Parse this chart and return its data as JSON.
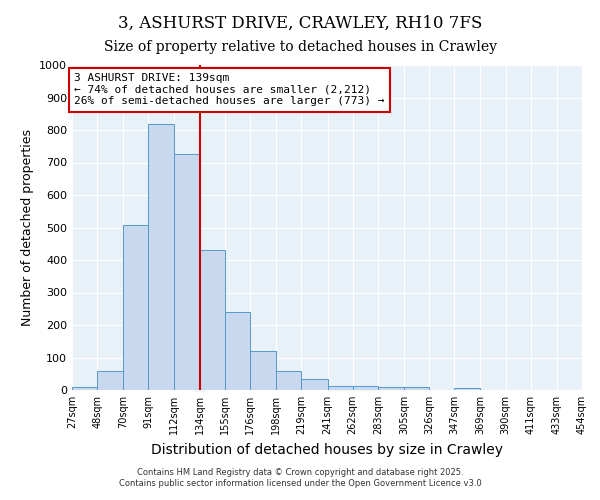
{
  "title": "3, ASHURST DRIVE, CRAWLEY, RH10 7FS",
  "subtitle": "Size of property relative to detached houses in Crawley",
  "xlabel": "Distribution of detached houses by size in Crawley",
  "ylabel": "Number of detached properties",
  "bin_edges": [
    27,
    48,
    70,
    91,
    112,
    134,
    155,
    176,
    198,
    219,
    241,
    262,
    283,
    305,
    326,
    347,
    369,
    390,
    411,
    433,
    454
  ],
  "bar_heights": [
    10,
    57,
    508,
    820,
    725,
    430,
    240,
    120,
    57,
    35,
    13,
    13,
    10,
    10,
    0,
    7,
    0,
    0,
    0,
    0
  ],
  "bar_color": "#c8d8ee",
  "bar_edgecolor": "#5599cc",
  "vline_x": 134,
  "vline_color": "#cc0000",
  "annotation_text": "3 ASHURST DRIVE: 139sqm\n← 74% of detached houses are smaller (2,212)\n26% of semi-detached houses are larger (773) →",
  "annotation_box_edgecolor": "#cc0000",
  "annotation_box_facecolor": "#ffffff",
  "ylim": [
    0,
    1000
  ],
  "yticks": [
    0,
    100,
    200,
    300,
    400,
    500,
    600,
    700,
    800,
    900,
    1000
  ],
  "plot_bg_color": "#e8f0f8",
  "fig_bg_color": "#ffffff",
  "grid_color": "#ffffff",
  "footer_line1": "Contains HM Land Registry data © Crown copyright and database right 2025.",
  "footer_line2": "Contains public sector information licensed under the Open Government Licence v3.0",
  "title_fontsize": 12,
  "subtitle_fontsize": 10,
  "ylabel_fontsize": 9,
  "xlabel_fontsize": 10
}
